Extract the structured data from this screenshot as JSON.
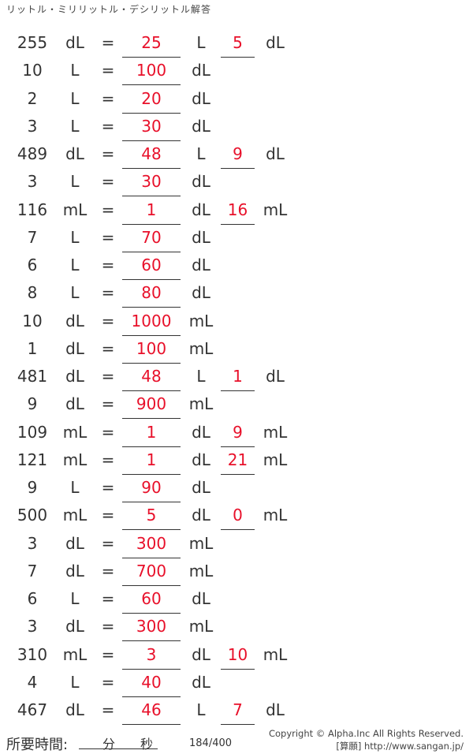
{
  "title": "リットル・ミリリットル・デシリットル解答",
  "equals": "=",
  "rows": [
    [
      "255",
      "dL",
      "25",
      "L",
      "5",
      "dL"
    ],
    [
      "10",
      "L",
      "100",
      "dL",
      "",
      ""
    ],
    [
      "2",
      "L",
      "20",
      "dL",
      "",
      ""
    ],
    [
      "3",
      "L",
      "30",
      "dL",
      "",
      ""
    ],
    [
      "489",
      "dL",
      "48",
      "L",
      "9",
      "dL"
    ],
    [
      "3",
      "L",
      "30",
      "dL",
      "",
      ""
    ],
    [
      "116",
      "mL",
      "1",
      "dL",
      "16",
      "mL"
    ],
    [
      "7",
      "L",
      "70",
      "dL",
      "",
      ""
    ],
    [
      "6",
      "L",
      "60",
      "dL",
      "",
      ""
    ],
    [
      "8",
      "L",
      "80",
      "dL",
      "",
      ""
    ],
    [
      "10",
      "dL",
      "1000",
      "mL",
      "",
      ""
    ],
    [
      "1",
      "dL",
      "100",
      "mL",
      "",
      ""
    ],
    [
      "481",
      "dL",
      "48",
      "L",
      "1",
      "dL"
    ],
    [
      "9",
      "dL",
      "900",
      "mL",
      "",
      ""
    ],
    [
      "109",
      "mL",
      "1",
      "dL",
      "9",
      "mL"
    ],
    [
      "121",
      "mL",
      "1",
      "dL",
      "21",
      "mL"
    ],
    [
      "9",
      "L",
      "90",
      "dL",
      "",
      ""
    ],
    [
      "500",
      "mL",
      "5",
      "dL",
      "0",
      "mL"
    ],
    [
      "3",
      "dL",
      "300",
      "mL",
      "",
      ""
    ],
    [
      "7",
      "dL",
      "700",
      "mL",
      "",
      ""
    ],
    [
      "6",
      "L",
      "60",
      "dL",
      "",
      ""
    ],
    [
      "3",
      "dL",
      "300",
      "mL",
      "",
      ""
    ],
    [
      "310",
      "mL",
      "3",
      "dL",
      "10",
      "mL"
    ],
    [
      "4",
      "L",
      "40",
      "dL",
      "",
      ""
    ],
    [
      "467",
      "dL",
      "46",
      "L",
      "7",
      "dL"
    ]
  ],
  "footer": {
    "time_label": "所要時間:",
    "minutes": "分",
    "seconds": "秒",
    "page": "184/400",
    "copyright": "Copyright © Alpha.Inc All Rights Reserved.",
    "site": "[算願] http://www.sangan.jp/"
  },
  "colors": {
    "answer": "#e8102a",
    "text": "#333333"
  }
}
